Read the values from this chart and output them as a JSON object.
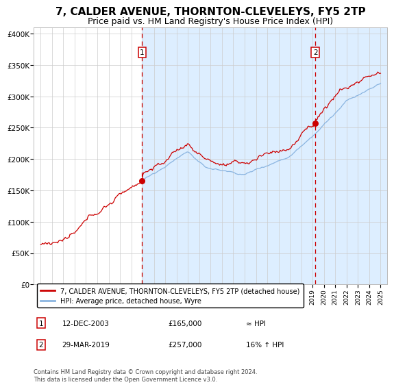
{
  "title": "7, CALDER AVENUE, THORNTON-CLEVELEYS, FY5 2TP",
  "subtitle": "Price paid vs. HM Land Registry's House Price Index (HPI)",
  "title_fontsize": 11,
  "subtitle_fontsize": 9,
  "ytick_labels": [
    "£0",
    "£50K",
    "£100K",
    "£150K",
    "£200K",
    "£250K",
    "£300K",
    "£350K",
    "£400K"
  ],
  "ytick_values": [
    0,
    50000,
    100000,
    150000,
    200000,
    250000,
    300000,
    350000,
    400000
  ],
  "hpi_color": "#8ab4e0",
  "price_color": "#cc0000",
  "bg_color": "#ddeeff",
  "ann1_t": 2003.96,
  "ann1_p": 165000,
  "ann2_t": 2019.24,
  "ann2_p": 257000,
  "legend_line1": "7, CALDER AVENUE, THORNTON-CLEVELEYS, FY5 2TP (detached house)",
  "legend_line2": "HPI: Average price, detached house, Wyre",
  "row1_num": "1",
  "row1_date": "12-DEC-2003",
  "row1_price": "£165,000",
  "row1_hpi": "≈ HPI",
  "row2_num": "2",
  "row2_date": "29-MAR-2019",
  "row2_price": "£257,000",
  "row2_hpi": "16% ↑ HPI",
  "footnote": "Contains HM Land Registry data © Crown copyright and database right 2024.\nThis data is licensed under the Open Government Licence v3.0."
}
